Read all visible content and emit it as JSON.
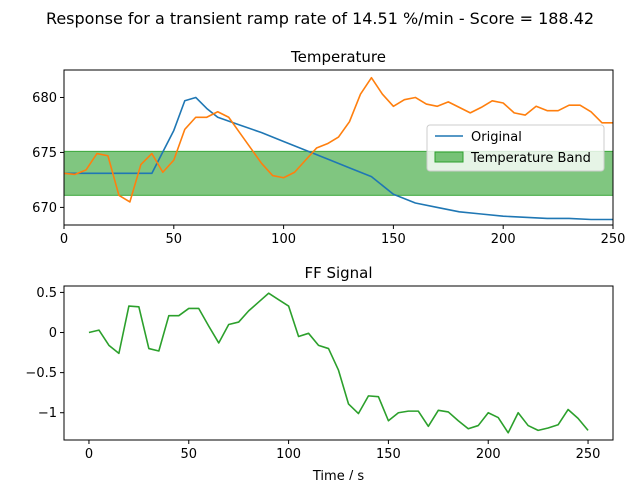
{
  "figure": {
    "suptitle": "Response for a transient ramp rate of 14.51 %/min - Score = 188.42"
  },
  "chart_data": [
    {
      "type": "line",
      "title": "Temperature",
      "xlabel": "",
      "ylabel": "",
      "xlim": [
        0,
        250
      ],
      "ylim": [
        668.4,
        682.5
      ],
      "xticks": [
        0,
        50,
        100,
        150,
        200,
        250
      ],
      "yticks": [
        670,
        675,
        680
      ],
      "legend_position": "center-right",
      "band": {
        "name": "Temperature Band",
        "y0": 671.1,
        "y1": 675.1,
        "color": "#2ca02c",
        "alpha": 0.6
      },
      "series": [
        {
          "name": "Original",
          "color": "#1f77b4",
          "x": [
            0,
            10,
            20,
            30,
            40,
            50,
            55,
            60,
            65,
            70,
            80,
            90,
            100,
            110,
            120,
            130,
            140,
            150,
            160,
            170,
            180,
            190,
            200,
            210,
            220,
            230,
            240,
            250
          ],
          "y": [
            673.1,
            673.1,
            673.1,
            673.1,
            673.1,
            677.0,
            679.7,
            680.0,
            679.0,
            678.2,
            677.5,
            676.8,
            676.0,
            675.2,
            674.4,
            673.6,
            672.8,
            671.2,
            670.4,
            670.0,
            669.6,
            669.4,
            669.2,
            669.1,
            669.0,
            669.0,
            668.9,
            668.9
          ]
        },
        {
          "name": "",
          "color": "#ff7f0e",
          "x": [
            0,
            5,
            10,
            15,
            20,
            25,
            30,
            35,
            40,
            45,
            50,
            55,
            60,
            65,
            70,
            75,
            80,
            85,
            90,
            95,
            100,
            105,
            110,
            115,
            120,
            125,
            130,
            135,
            140,
            145,
            150,
            155,
            160,
            165,
            170,
            175,
            180,
            185,
            190,
            195,
            200,
            205,
            210,
            215,
            220,
            225,
            230,
            235,
            240,
            245,
            250
          ],
          "y": [
            673.1,
            673.0,
            673.4,
            674.9,
            674.7,
            671.1,
            670.5,
            673.9,
            674.9,
            673.2,
            674.3,
            677.1,
            678.2,
            678.2,
            678.7,
            678.2,
            676.8,
            675.4,
            674.0,
            672.9,
            672.7,
            673.2,
            674.3,
            675.4,
            675.8,
            676.4,
            677.8,
            680.3,
            681.8,
            680.3,
            679.2,
            679.8,
            680.0,
            679.4,
            679.2,
            679.6,
            679.1,
            678.6,
            679.1,
            679.7,
            679.5,
            678.6,
            678.4,
            679.2,
            678.8,
            678.8,
            679.3,
            679.3,
            678.7,
            677.7,
            677.7
          ]
        }
      ]
    },
    {
      "type": "line",
      "title": "FF Signal",
      "xlabel": "Time / s",
      "ylabel": "",
      "xlim": [
        -12.5,
        262.5
      ],
      "ylim": [
        -1.34,
        0.58
      ],
      "xticks": [
        0,
        50,
        100,
        150,
        200,
        250
      ],
      "yticks": [
        0.5,
        0.0,
        -0.5,
        -1.0
      ],
      "series": [
        {
          "name": "",
          "color": "#2ca02c",
          "x": [
            0,
            5,
            10,
            15,
            20,
            25,
            30,
            35,
            40,
            45,
            50,
            55,
            60,
            65,
            70,
            75,
            80,
            85,
            90,
            95,
            100,
            105,
            110,
            115,
            120,
            125,
            130,
            135,
            140,
            145,
            150,
            155,
            160,
            165,
            170,
            175,
            180,
            185,
            190,
            195,
            200,
            205,
            210,
            215,
            220,
            225,
            230,
            235,
            240,
            245,
            250
          ],
          "y": [
            0.0,
            0.03,
            -0.16,
            -0.26,
            0.33,
            0.32,
            -0.2,
            -0.23,
            0.21,
            0.21,
            0.3,
            0.3,
            0.08,
            -0.13,
            0.1,
            0.13,
            0.27,
            0.38,
            0.49,
            0.41,
            0.33,
            -0.05,
            -0.01,
            -0.16,
            -0.2,
            -0.47,
            -0.89,
            -1.01,
            -0.79,
            -0.8,
            -1.1,
            -1.0,
            -0.98,
            -0.98,
            -1.17,
            -0.97,
            -0.99,
            -1.1,
            -1.2,
            -1.16,
            -1.0,
            -1.06,
            -1.25,
            -1.0,
            -1.16,
            -1.22,
            -1.19,
            -1.15,
            -0.96,
            -1.07,
            -1.22
          ]
        }
      ]
    }
  ]
}
